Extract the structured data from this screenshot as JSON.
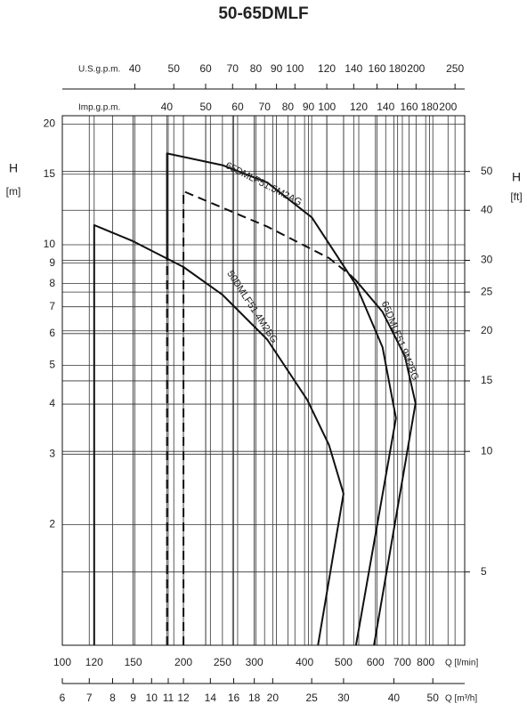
{
  "chart_data": {
    "type": "line",
    "title": "50-65DMLF",
    "log_x": true,
    "log_y": true,
    "grid": true,
    "x_label": "Q [l/min]",
    "x2_label": "Q [m³/h]",
    "x3_label": "U.S.g.p.m.",
    "x4_label": "Imp.g.p.m.",
    "y_label": "H",
    "y_unit": "[m]",
    "y2_label": "H",
    "y2_unit": "[ft]",
    "xlim": [
      100,
      1000
    ],
    "xticks": [
      100,
      120,
      150,
      200,
      250,
      300,
      400,
      500,
      600,
      700,
      800
    ],
    "x2lim": [
      6,
      60
    ],
    "x2ticks": [
      6,
      7,
      8,
      9,
      10,
      11,
      12,
      14,
      16,
      18,
      20,
      25,
      30,
      40,
      50
    ],
    "x3lim": [
      26.42,
      264.2
    ],
    "x3ticks": [
      40,
      50,
      60,
      70,
      80,
      90,
      100,
      120,
      140,
      160,
      180,
      200,
      250
    ],
    "x4lim": [
      22,
      220
    ],
    "x4ticks": [
      40,
      50,
      60,
      70,
      80,
      90,
      100,
      120,
      140,
      160,
      180,
      200
    ],
    "ylim": [
      1,
      21
    ],
    "yticks": [
      2,
      3,
      4,
      5,
      6,
      7,
      8,
      9,
      10,
      15,
      20
    ],
    "y2lim": [
      3.281,
      68.9
    ],
    "y2ticks": [
      5,
      10,
      15,
      20,
      25,
      30,
      40,
      50
    ],
    "series": [
      {
        "name": "50DMLF51.4M2BG",
        "color": "#111111",
        "segments": [
          {
            "style": "solid",
            "x": [
              120,
              120,
              150,
              200,
              250,
              323,
              406,
              460,
              500,
              432
            ],
            "values": [
              1,
              11.2,
              10.2,
              8.8,
              7.5,
              5.8,
              4.1,
              3.16,
              2.39,
              1
            ]
          }
        ]
      },
      {
        "name": "65DMLF51.5M2AG",
        "color": "#111111",
        "segments": [
          {
            "style": "dashed",
            "x": [
              182,
              182
            ],
            "values": [
              1,
              9.6
            ]
          },
          {
            "style": "solid",
            "x": [
              182,
              182,
              250,
              323,
              417,
              537,
              625,
              675,
              537
            ],
            "values": [
              9.6,
              16.9,
              15.8,
              14.3,
              11.7,
              7.94,
              5.55,
              3.69,
              1
            ]
          }
        ]
      },
      {
        "name": "65DMLF51.9M2BG",
        "color": "#111111",
        "segments": [
          {
            "style": "dashed",
            "x": [
              200,
              200,
              323,
              460,
              520
            ],
            "values": [
              1,
              13.6,
              11.1,
              9.26,
              8.4
            ]
          },
          {
            "style": "solid",
            "x": [
              520,
              537,
              625,
              710,
              755,
              595
            ],
            "values": [
              8.4,
              8.14,
              6.8,
              5.27,
              4.02,
              1
            ]
          }
        ]
      }
    ]
  }
}
